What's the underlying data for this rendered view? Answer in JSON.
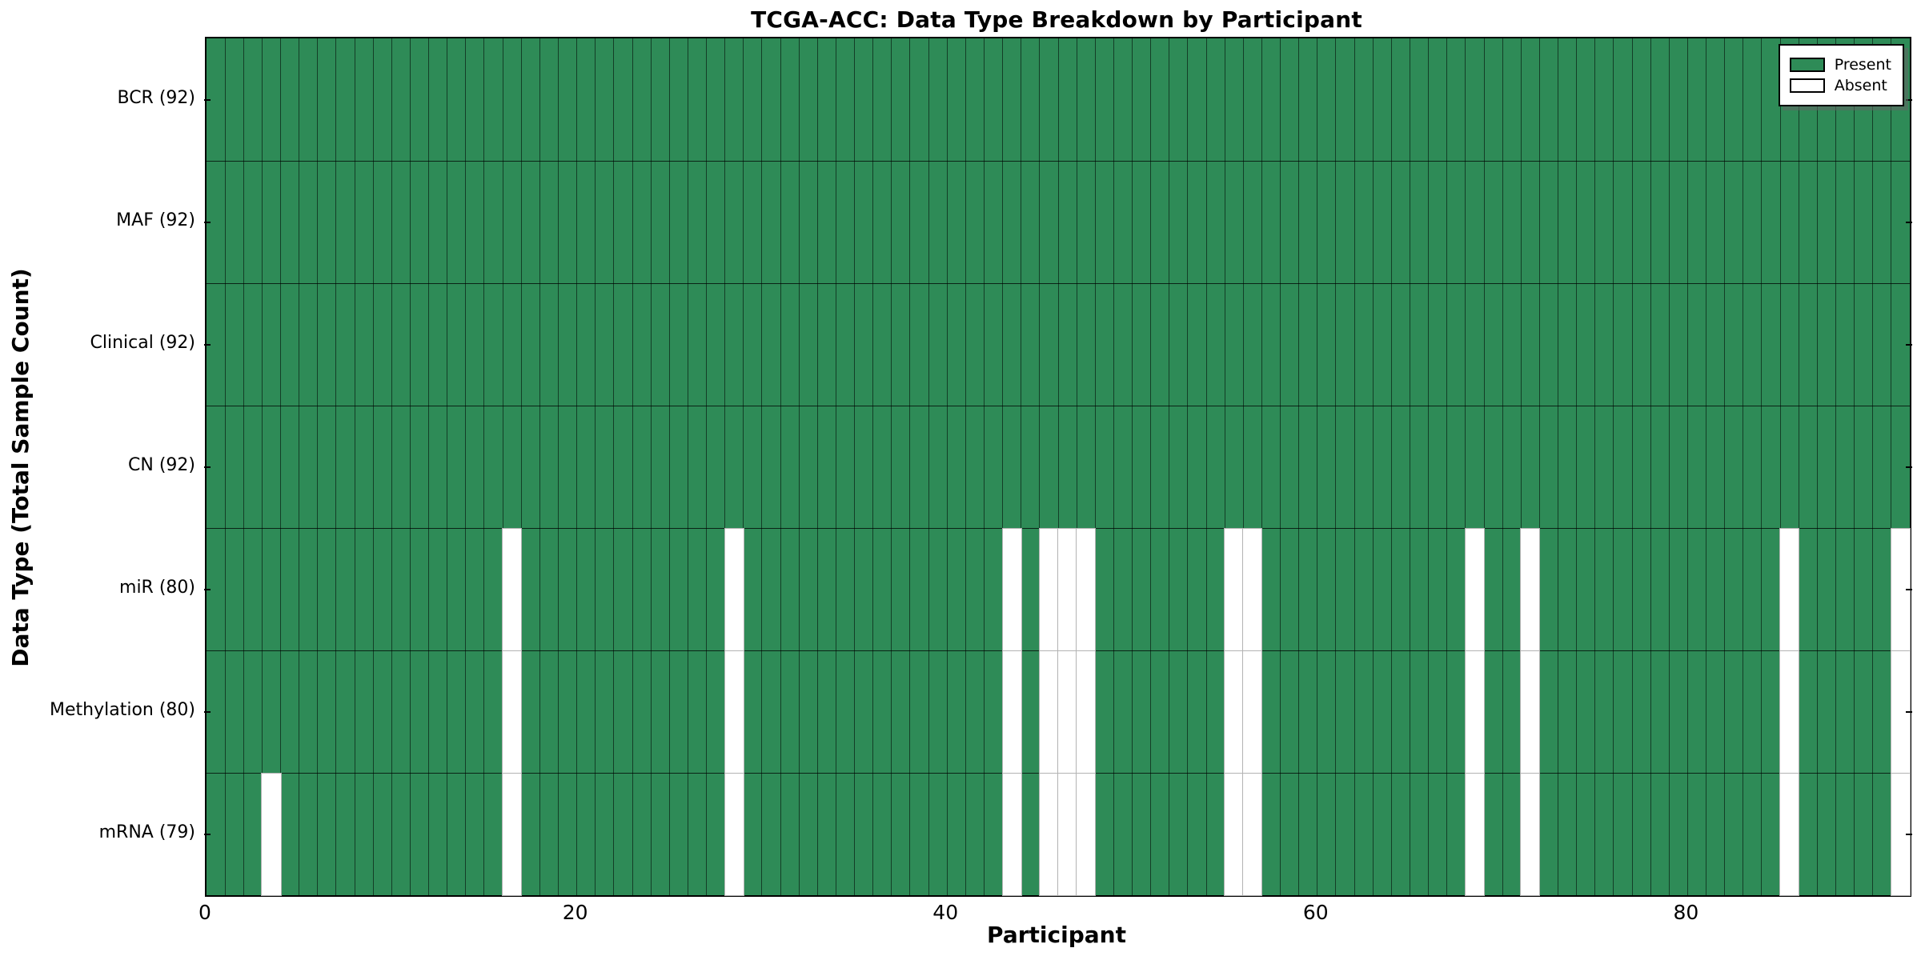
{
  "title": "TCGA-ACC: Data Type Breakdown by Participant",
  "chart_data": {
    "type": "heatmap",
    "title": "TCGA-ACC: Data Type Breakdown by Participant",
    "xlabel": "Participant",
    "ylabel": "Data Type (Total Sample Count)",
    "n_participants": 92,
    "x_ticks": [
      0,
      20,
      40,
      60,
      80
    ],
    "xlim": [
      0,
      92
    ],
    "grid": true,
    "legend_position": "upper right",
    "colors": {
      "present": "#2E8B57",
      "absent": "#ffffff",
      "cell_edge": "#000000"
    },
    "rows": [
      {
        "name": "BCR",
        "label": "BCR (92)",
        "total_samples": 92,
        "absent_participants": []
      },
      {
        "name": "MAF",
        "label": "MAF (92)",
        "total_samples": 92,
        "absent_participants": []
      },
      {
        "name": "Clinical",
        "label": "Clinical (92)",
        "total_samples": 92,
        "absent_participants": []
      },
      {
        "name": "CN",
        "label": "CN (92)",
        "total_samples": 92,
        "absent_participants": []
      },
      {
        "name": "miR",
        "label": "miR (80)",
        "total_samples": 80,
        "absent_participants": [
          16,
          28,
          43,
          45,
          46,
          47,
          55,
          56,
          68,
          71,
          85,
          91
        ]
      },
      {
        "name": "Methylation",
        "label": "Methylation (80)",
        "total_samples": 80,
        "absent_participants": [
          16,
          28,
          43,
          45,
          46,
          47,
          55,
          56,
          68,
          71,
          85,
          91
        ]
      },
      {
        "name": "mRNA",
        "label": "mRNA (79)",
        "total_samples": 79,
        "absent_participants": [
          3,
          16,
          28,
          43,
          45,
          46,
          47,
          55,
          56,
          68,
          71,
          85,
          91
        ]
      }
    ],
    "legend": [
      {
        "label": "Present",
        "color": "#2E8B57"
      },
      {
        "label": "Absent",
        "color": "#ffffff"
      }
    ]
  }
}
